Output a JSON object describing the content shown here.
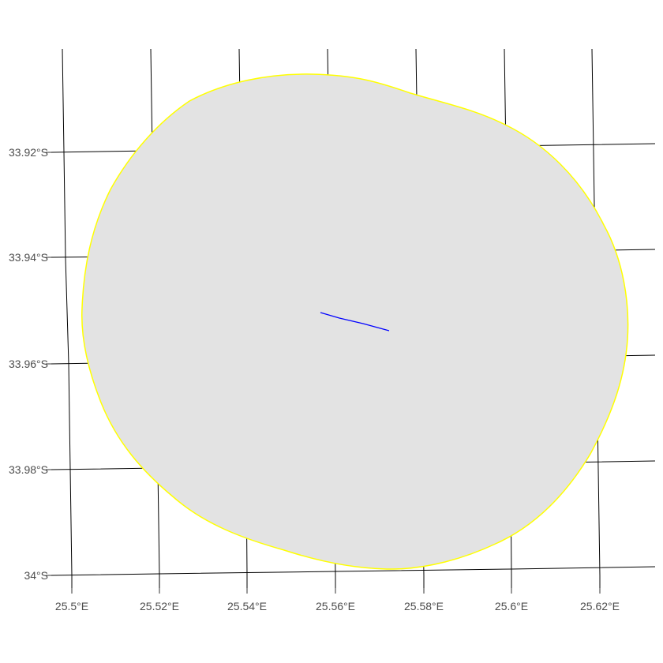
{
  "map": {
    "colors": {
      "background": "#ffffff",
      "graticule": "#000000",
      "polygon_fill": "#e3e3e3",
      "polygon_border": "#ffff00",
      "track_line": "#0000ff",
      "tick_label": "#4d4d4d"
    },
    "longitude_labels": [
      "25.5°E",
      "25.52°E",
      "25.54°E",
      "25.56°E",
      "25.58°E",
      "25.6°E",
      "25.62°E"
    ],
    "latitude_labels": [
      "33.92°S",
      "33.94°S",
      "33.96°S",
      "33.98°S",
      "34°S"
    ],
    "features": {
      "buffer_polygon": "buffer-area",
      "track_line": "track-segment"
    }
  }
}
